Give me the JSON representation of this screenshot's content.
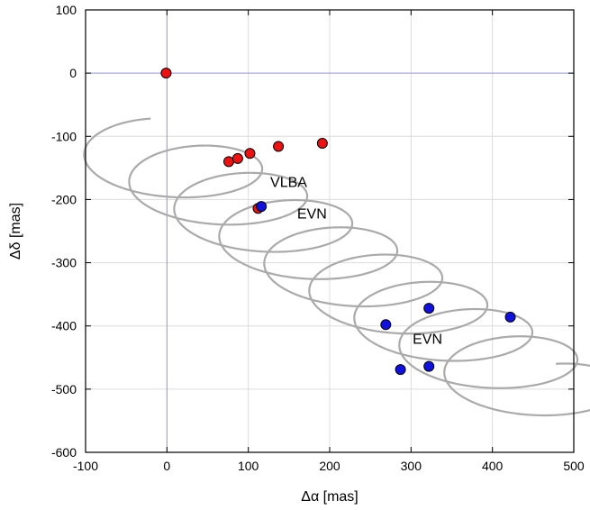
{
  "chart_data": {
    "type": "scatter",
    "xlabel": "Δα [mas]",
    "ylabel": "Δδ [mas]",
    "xlim": [
      -100,
      500
    ],
    "ylim": [
      -600,
      100
    ],
    "xticks": [
      -100,
      0,
      100,
      200,
      300,
      400,
      500
    ],
    "yticks": [
      -600,
      -500,
      -400,
      -300,
      -200,
      -100,
      0,
      100
    ],
    "grid": true,
    "reference_lines": {
      "x": 0,
      "y": 0,
      "color": "#9999dd"
    },
    "track": {
      "color": "#aaaaaa",
      "loops": 9,
      "start": [
        -20,
        -72
      ],
      "end": [
        478,
        -460
      ]
    },
    "series": [
      {
        "color": "#ee1111",
        "points": [
          {
            "x": -1,
            "y": 0
          },
          {
            "x": 76,
            "y": -140
          },
          {
            "x": 87,
            "y": -135
          },
          {
            "x": 102,
            "y": -127
          },
          {
            "x": 137,
            "y": -116
          },
          {
            "x": 191,
            "y": -111
          },
          {
            "x": 112,
            "y": -214
          }
        ]
      },
      {
        "color": "#1111dd",
        "points": [
          {
            "x": 116,
            "y": -211
          },
          {
            "x": 269,
            "y": -398
          },
          {
            "x": 322,
            "y": -372
          },
          {
            "x": 422,
            "y": -386
          },
          {
            "x": 287,
            "y": -469
          },
          {
            "x": 322,
            "y": -464
          }
        ]
      }
    ],
    "annotations": [
      {
        "text": "VLBA",
        "x": 127,
        "y": -180
      },
      {
        "text": "EVN",
        "x": 160,
        "y": -230
      },
      {
        "text": "EVN",
        "x": 302,
        "y": -428
      }
    ]
  }
}
